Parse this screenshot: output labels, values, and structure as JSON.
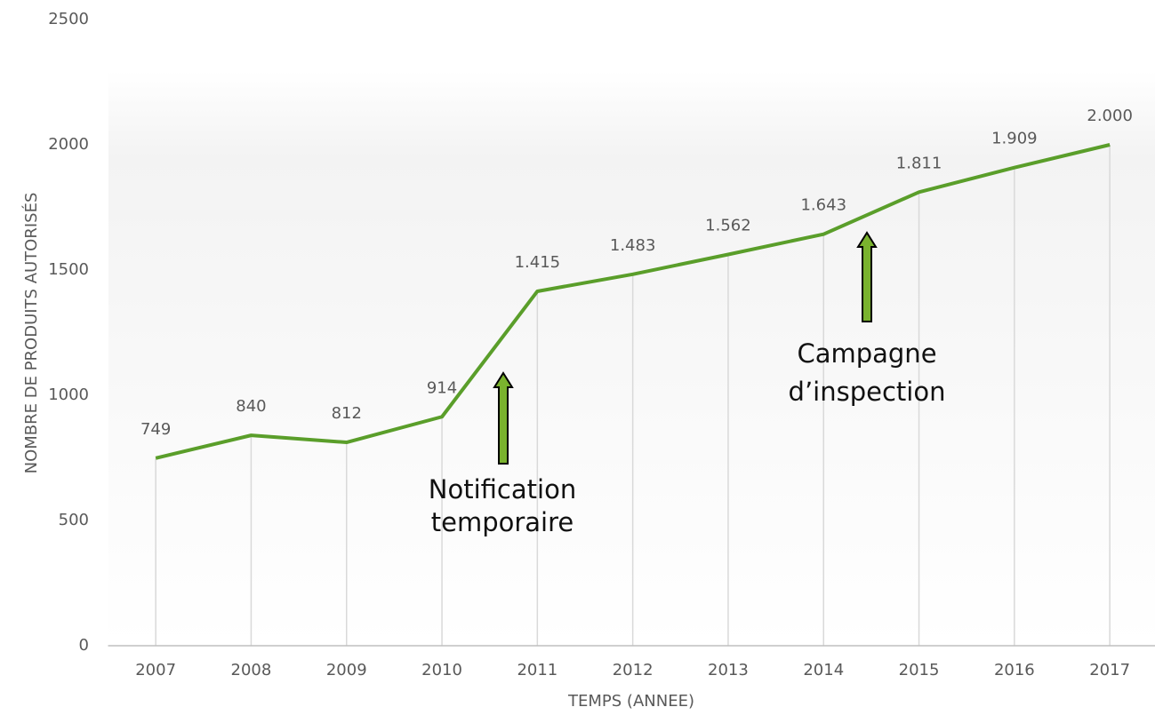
{
  "chart_data": {
    "type": "line",
    "categories": [
      "2007",
      "2008",
      "2009",
      "2010",
      "2011",
      "2012",
      "2013",
      "2014",
      "2015",
      "2016",
      "2017"
    ],
    "values": [
      749,
      840,
      812,
      914,
      1415,
      1483,
      1562,
      1643,
      1811,
      1909,
      2000
    ],
    "value_labels": [
      "749",
      "840",
      "812",
      "914",
      "1.415",
      "1.483",
      "1.562",
      "1.643",
      "1.811",
      "1.909",
      "2.000"
    ],
    "color": "#5a9e2a",
    "ylim": [
      0,
      2500
    ],
    "yticks": [
      0,
      500,
      1000,
      1500,
      2000,
      2500
    ],
    "grid": false,
    "x_label": "TEMPS (ANNEE)",
    "y_label": "NOMBRE DE PRODUITS AUTORISÉS",
    "annotations": [
      [
        "Notification",
        "temporaire"
      ],
      [
        "Campagne",
        "d’inspection"
      ]
    ]
  }
}
